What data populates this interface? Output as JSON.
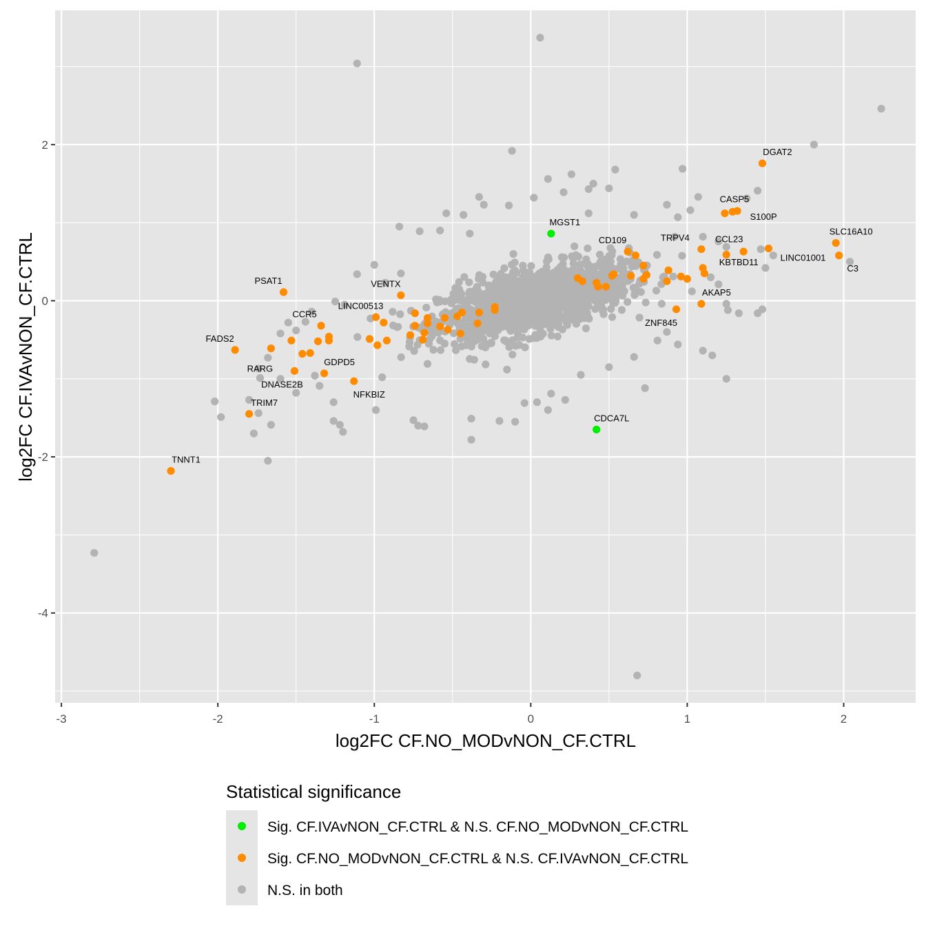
{
  "chart_data": {
    "type": "scatter",
    "xlabel": "log2FC CF.NO_MODvNON_CF.CTRL",
    "ylabel": "log2FC CF.IVAvNON_CF.CTRL",
    "xlim": [
      -3.04,
      2.46
    ],
    "ylim": [
      -5.15,
      3.72
    ],
    "x_ticks": [
      -3,
      -2,
      -1,
      0,
      1,
      2
    ],
    "y_ticks": [
      -4,
      -2,
      0,
      2
    ],
    "grid": true,
    "legend_title": "Statistical significance",
    "legend_position": "bottom",
    "colors": {
      "panel": "#e5e5e5",
      "grid": "#ffffff",
      "green": "#00ee00",
      "orange": "#ff8c00",
      "gray": "#b3b3b3"
    },
    "series": [
      {
        "name": "Sig. CF.IVAvNON_CF.CTRL & N.S. CF.NO_MODvNON_CF.CTRL",
        "color": "#00ee00",
        "points": [
          {
            "x": 0.13,
            "y": 0.86,
            "label": "MGST1"
          },
          {
            "x": 0.42,
            "y": -1.65,
            "label": "CDCA7L"
          }
        ]
      },
      {
        "name": "Sig. CF.NO_MODvNON_CF.CTRL & N.S. CF.IVAvNON_CF.CTRL",
        "color": "#ff8c00",
        "points": [
          {
            "x": 1.48,
            "y": 1.76,
            "label": "DGAT2"
          },
          {
            "x": 1.24,
            "y": 1.12,
            "label": "CASP5"
          },
          {
            "x": 1.29,
            "y": 1.14,
            "label": ""
          },
          {
            "x": 1.32,
            "y": 1.15,
            "label": "S100P"
          },
          {
            "x": 1.95,
            "y": 0.74,
            "label": "SLC16A10"
          },
          {
            "x": 1.97,
            "y": 0.58,
            "label": "C3"
          },
          {
            "x": 1.52,
            "y": 0.67,
            "label": "LINC01001"
          },
          {
            "x": 1.36,
            "y": 0.63,
            "label": ""
          },
          {
            "x": 1.25,
            "y": 0.59,
            "label": "CCL23"
          },
          {
            "x": 1.09,
            "y": 0.66,
            "label": "TRPV4"
          },
          {
            "x": 1.1,
            "y": 0.42,
            "label": "KBTBD11"
          },
          {
            "x": 1.11,
            "y": 0.35,
            "label": ""
          },
          {
            "x": 1.09,
            "y": -0.04,
            "label": "AKAP5"
          },
          {
            "x": 0.93,
            "y": -0.11,
            "label": "ZNF845"
          },
          {
            "x": 0.62,
            "y": 0.63,
            "label": "CD109"
          },
          {
            "x": 0.67,
            "y": 0.58,
            "label": ""
          },
          {
            "x": 0.72,
            "y": 0.45,
            "label": ""
          },
          {
            "x": 0.74,
            "y": 0.33,
            "label": ""
          },
          {
            "x": 0.72,
            "y": 0.28,
            "label": ""
          },
          {
            "x": 0.64,
            "y": 0.32,
            "label": ""
          },
          {
            "x": 0.53,
            "y": 0.34,
            "label": ""
          },
          {
            "x": 0.52,
            "y": 0.32,
            "label": ""
          },
          {
            "x": 0.48,
            "y": 0.18,
            "label": ""
          },
          {
            "x": 0.43,
            "y": 0.18,
            "label": ""
          },
          {
            "x": 0.42,
            "y": 0.23,
            "label": ""
          },
          {
            "x": 0.33,
            "y": 0.25,
            "label": ""
          },
          {
            "x": 0.3,
            "y": 0.29,
            "label": ""
          },
          {
            "x": 0.88,
            "y": 0.39,
            "label": ""
          },
          {
            "x": 0.87,
            "y": 0.25,
            "label": ""
          },
          {
            "x": 0.96,
            "y": 0.31,
            "label": ""
          },
          {
            "x": 1.0,
            "y": 0.28,
            "label": ""
          },
          {
            "x": -0.23,
            "y": -0.08,
            "label": ""
          },
          {
            "x": -0.23,
            "y": -0.12,
            "label": ""
          },
          {
            "x": -0.33,
            "y": -0.15,
            "label": ""
          },
          {
            "x": -0.34,
            "y": -0.29,
            "label": ""
          },
          {
            "x": -0.44,
            "y": -0.15,
            "label": ""
          },
          {
            "x": -0.45,
            "y": -0.42,
            "label": ""
          },
          {
            "x": -0.47,
            "y": -0.2,
            "label": ""
          },
          {
            "x": -0.53,
            "y": -0.37,
            "label": ""
          },
          {
            "x": -0.55,
            "y": -0.22,
            "label": ""
          },
          {
            "x": -0.58,
            "y": -0.33,
            "label": ""
          },
          {
            "x": -0.66,
            "y": -0.22,
            "label": ""
          },
          {
            "x": -0.66,
            "y": -0.29,
            "label": ""
          },
          {
            "x": -0.68,
            "y": -0.41,
            "label": ""
          },
          {
            "x": -0.69,
            "y": -0.5,
            "label": ""
          },
          {
            "x": -0.74,
            "y": -0.16,
            "label": ""
          },
          {
            "x": -0.74,
            "y": -0.32,
            "label": ""
          },
          {
            "x": -0.77,
            "y": -0.44,
            "label": ""
          },
          {
            "x": -0.83,
            "y": 0.07,
            "label": "VENTX"
          },
          {
            "x": -0.99,
            "y": -0.21,
            "label": "LINC00513"
          },
          {
            "x": -0.94,
            "y": -0.28,
            "label": ""
          },
          {
            "x": -0.92,
            "y": -0.51,
            "label": ""
          },
          {
            "x": -0.98,
            "y": -0.57,
            "label": ""
          },
          {
            "x": -1.03,
            "y": -0.49,
            "label": ""
          },
          {
            "x": -1.13,
            "y": -1.03,
            "label": "NFKBIZ"
          },
          {
            "x": -1.32,
            "y": -0.93,
            "label": "GDPD5"
          },
          {
            "x": -1.29,
            "y": -0.46,
            "label": ""
          },
          {
            "x": -1.29,
            "y": -0.51,
            "label": ""
          },
          {
            "x": -1.34,
            "y": -0.32,
            "label": "CCR5"
          },
          {
            "x": -1.36,
            "y": -0.52,
            "label": ""
          },
          {
            "x": -1.41,
            "y": -0.67,
            "label": ""
          },
          {
            "x": -1.46,
            "y": -0.68,
            "label": ""
          },
          {
            "x": -1.53,
            "y": -0.51,
            "label": ""
          },
          {
            "x": -1.51,
            "y": -0.9,
            "label": "DNASE2B"
          },
          {
            "x": -1.66,
            "y": -0.61,
            "label": "RARG"
          },
          {
            "x": -1.58,
            "y": 0.11,
            "label": "PSAT1"
          },
          {
            "x": -1.89,
            "y": -0.63,
            "label": "FADS2"
          },
          {
            "x": -1.8,
            "y": -1.45,
            "label": "TRIM7"
          },
          {
            "x": -2.3,
            "y": -2.18,
            "label": "TNNT1"
          }
        ]
      },
      {
        "name": "N.S. in both",
        "color": "#b3b3b3",
        "points": [
          {
            "x": 0.06,
            "y": 3.37
          },
          {
            "x": -1.11,
            "y": 3.04
          },
          {
            "x": 2.24,
            "y": 2.46
          },
          {
            "x": 1.81,
            "y": 2.0
          },
          {
            "x": -0.12,
            "y": 1.92
          },
          {
            "x": 0.97,
            "y": 1.69
          },
          {
            "x": 0.54,
            "y": 1.68
          },
          {
            "x": 0.26,
            "y": 1.62
          },
          {
            "x": 0.11,
            "y": 1.56
          },
          {
            "x": 0.4,
            "y": 1.5
          },
          {
            "x": 0.5,
            "y": 1.44
          },
          {
            "x": 0.37,
            "y": 1.43
          },
          {
            "x": 0.21,
            "y": 1.39
          },
          {
            "x": 0.02,
            "y": 1.32
          },
          {
            "x": 1.45,
            "y": 1.41
          },
          {
            "x": 1.38,
            "y": 1.31
          },
          {
            "x": 1.07,
            "y": 1.33
          },
          {
            "x": 0.87,
            "y": 1.23
          },
          {
            "x": 1.02,
            "y": 1.16
          },
          {
            "x": 0.94,
            "y": 1.07
          },
          {
            "x": -0.33,
            "y": 1.33
          },
          {
            "x": -0.3,
            "y": 1.23
          },
          {
            "x": -0.14,
            "y": 1.22
          },
          {
            "x": -0.54,
            "y": 1.12
          },
          {
            "x": -0.43,
            "y": 1.1
          },
          {
            "x": -0.84,
            "y": 0.95
          },
          {
            "x": -0.71,
            "y": 0.89
          },
          {
            "x": -0.58,
            "y": 0.9
          },
          {
            "x": -0.39,
            "y": 0.86
          },
          {
            "x": 0.37,
            "y": 1.12
          },
          {
            "x": 0.66,
            "y": 1.1
          },
          {
            "x": -1.0,
            "y": 0.46
          },
          {
            "x": -1.11,
            "y": 0.34
          },
          {
            "x": -0.83,
            "y": 0.35
          },
          {
            "x": -0.93,
            "y": 0.23
          },
          {
            "x": -1.19,
            "y": -0.05
          },
          {
            "x": -1.25,
            "y": -0.01
          },
          {
            "x": -1.4,
            "y": -0.14
          },
          {
            "x": -1.44,
            "y": -0.27
          },
          {
            "x": -1.5,
            "y": -0.38
          },
          {
            "x": -1.55,
            "y": -0.28
          },
          {
            "x": -1.6,
            "y": -0.42
          },
          {
            "x": -1.68,
            "y": -0.73
          },
          {
            "x": -1.74,
            "y": -0.87
          },
          {
            "x": -1.73,
            "y": -0.99
          },
          {
            "x": -1.8,
            "y": -1.27
          },
          {
            "x": -1.74,
            "y": -1.44
          },
          {
            "x": -1.77,
            "y": -1.7
          },
          {
            "x": -1.66,
            "y": -1.59
          },
          {
            "x": -1.68,
            "y": -2.05
          },
          {
            "x": -1.98,
            "y": -1.49
          },
          {
            "x": -2.02,
            "y": -1.29
          },
          {
            "x": -1.6,
            "y": -1.0
          },
          {
            "x": -1.5,
            "y": -1.18
          },
          {
            "x": -1.38,
            "y": -0.96
          },
          {
            "x": -1.35,
            "y": -1.09
          },
          {
            "x": -1.26,
            "y": -1.3
          },
          {
            "x": -1.26,
            "y": -1.54
          },
          {
            "x": -1.2,
            "y": -1.68
          },
          {
            "x": -1.22,
            "y": -1.59
          },
          {
            "x": -0.99,
            "y": -1.4
          },
          {
            "x": -0.95,
            "y": -0.98
          },
          {
            "x": -0.75,
            "y": -1.53
          },
          {
            "x": -0.72,
            "y": -1.6
          },
          {
            "x": -0.68,
            "y": -1.61
          },
          {
            "x": -0.38,
            "y": -1.78
          },
          {
            "x": -0.38,
            "y": -1.51
          },
          {
            "x": -0.2,
            "y": -1.54
          },
          {
            "x": -0.1,
            "y": -1.55
          },
          {
            "x": -0.04,
            "y": -1.31
          },
          {
            "x": 0.04,
            "y": -1.3
          },
          {
            "x": 0.11,
            "y": -1.4
          },
          {
            "x": 0.13,
            "y": -1.19
          },
          {
            "x": 0.22,
            "y": -1.27
          },
          {
            "x": 0.32,
            "y": -0.95
          },
          {
            "x": 0.5,
            "y": -0.85
          },
          {
            "x": 0.66,
            "y": -0.72
          },
          {
            "x": 0.73,
            "y": -1.12
          },
          {
            "x": 0.68,
            "y": -4.8
          },
          {
            "x": -2.79,
            "y": -3.23
          },
          {
            "x": 1.25,
            "y": -1.0
          },
          {
            "x": 1.16,
            "y": -0.7
          },
          {
            "x": 1.1,
            "y": -0.64
          },
          {
            "x": 0.94,
            "y": -0.56
          },
          {
            "x": 0.81,
            "y": -0.51
          },
          {
            "x": 0.87,
            "y": -0.4
          },
          {
            "x": 1.25,
            "y": -0.04
          },
          {
            "x": 1.26,
            "y": -0.12
          },
          {
            "x": 1.33,
            "y": -0.16
          },
          {
            "x": 1.45,
            "y": -0.16
          },
          {
            "x": 1.48,
            "y": -0.11
          },
          {
            "x": 1.5,
            "y": 0.42
          },
          {
            "x": 1.55,
            "y": 0.58
          },
          {
            "x": 2.04,
            "y": 0.5
          },
          {
            "x": 1.47,
            "y": 0.66
          },
          {
            "x": 1.25,
            "y": 0.69
          },
          {
            "x": 1.2,
            "y": 0.76
          },
          {
            "x": 1.1,
            "y": 0.82
          },
          {
            "x": 0.92,
            "y": 0.82
          },
          {
            "x": 1.15,
            "y": 0.3
          },
          {
            "x": 1.2,
            "y": 0.21
          },
          {
            "x": 1.03,
            "y": 0.12
          },
          {
            "x": -0.07,
            "y": 0.1
          },
          {
            "x": 0.12,
            "y": -0.05
          }
        ]
      }
    ],
    "background_cloud": {
      "name": "N.S. in both",
      "count": 1500,
      "center": [
        0.02,
        0.0
      ],
      "sd_x": 0.3,
      "sd_y": 0.24,
      "correlation": 0.55
    }
  }
}
